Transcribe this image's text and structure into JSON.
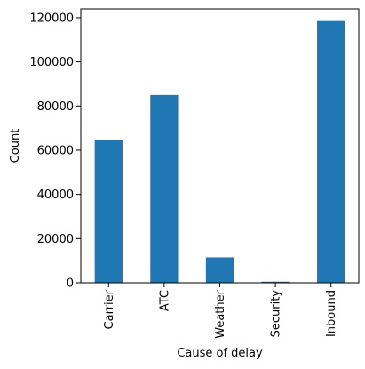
{
  "chart_data": {
    "type": "bar",
    "title": "",
    "xlabel": "Cause of delay",
    "ylabel": "Count",
    "categories": [
      "Carrier",
      "ATC",
      "Weather",
      "Security",
      "Inbound"
    ],
    "values": [
      64500,
      85000,
      11500,
      500,
      118500
    ],
    "ylim": [
      0,
      124000
    ],
    "yticks": [
      0,
      20000,
      40000,
      60000,
      80000,
      100000,
      120000
    ],
    "ytick_labels": [
      "0",
      "20000",
      "40000",
      "60000",
      "80000",
      "100000",
      "120000"
    ],
    "bar_color": "#1f77b4",
    "grid": false,
    "legend": "none"
  }
}
